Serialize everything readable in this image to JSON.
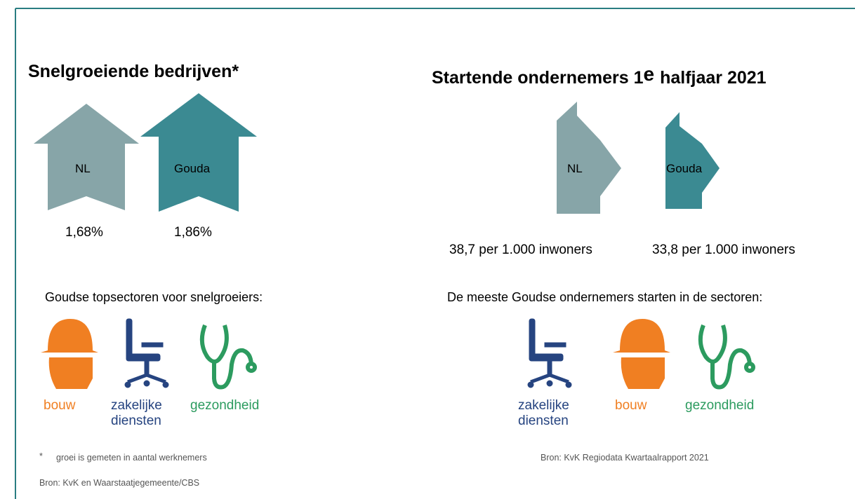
{
  "left": {
    "title": "Snelgroeiende bedrijven*",
    "arrows": [
      {
        "label": "NL",
        "value": "1,68%"
      },
      {
        "label": "Gouda",
        "value": "1,86%"
      }
    ],
    "sectors_title": "Goudse topsectoren voor snelgroeiers:",
    "sectors": [
      "bouw",
      "zakelijke diensten",
      "gezondheid"
    ],
    "footnote_mark": "*",
    "footnote": "groei is gemeten in aantal werknemers",
    "source": "Bron: KvK en Waarstaatjegemeente/CBS"
  },
  "right": {
    "title_parts": [
      "Startende ondernemers 1",
      "e",
      "halfjaar 2021"
    ],
    "arrows": [
      {
        "label": "NL",
        "value": "38,7 per 1.000 inwoners"
      },
      {
        "label": "Gouda",
        "value": "33,8 per 1.000 inwoners"
      }
    ],
    "sectors_title": "De meeste Goudse ondernemers starten in de sectoren:",
    "sectors": [
      "zakelijke diensten",
      "bouw",
      "gezondheid"
    ],
    "source": "Bron: KvK Regiodata Kwartaalrapport 2021"
  }
}
